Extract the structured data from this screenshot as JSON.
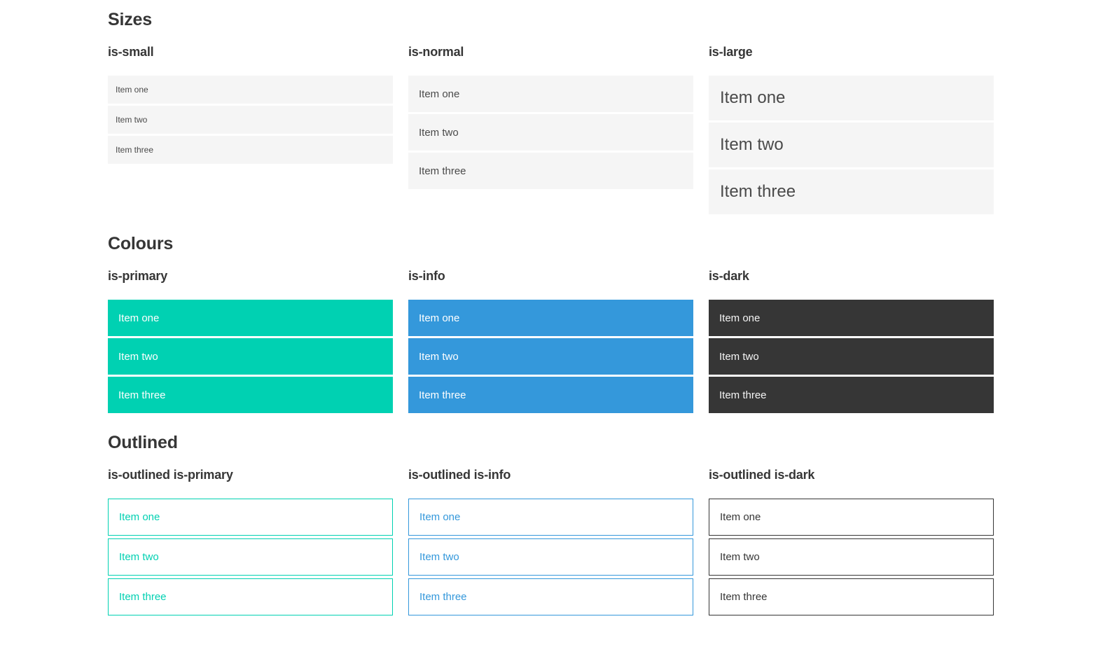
{
  "palette": {
    "primary": "#00d1b2",
    "info": "#3498db",
    "dark": "#363636",
    "light_background": "#f5f5f5",
    "item_text": "#4a4a4a",
    "heading_text": "#363636",
    "light_text": "#f5f5f5"
  },
  "sections": [
    {
      "title": "Sizes",
      "groups": [
        {
          "subtitle": "is-small",
          "items": [
            "Item one",
            "Item two",
            "Item three"
          ]
        },
        {
          "subtitle": "is-normal",
          "items": [
            "Item one",
            "Item two",
            "Item three"
          ]
        },
        {
          "subtitle": "is-large",
          "items": [
            "Item one",
            "Item two",
            "Item three"
          ]
        }
      ]
    },
    {
      "title": "Colours",
      "groups": [
        {
          "subtitle": "is-primary",
          "items": [
            "Item one",
            "Item two",
            "Item three"
          ]
        },
        {
          "subtitle": "is-info",
          "items": [
            "Item one",
            "Item two",
            "Item three"
          ]
        },
        {
          "subtitle": "is-dark",
          "items": [
            "Item one",
            "Item two",
            "Item three"
          ]
        }
      ]
    },
    {
      "title": "Outlined",
      "groups": [
        {
          "subtitle": "is-outlined is-primary",
          "items": [
            "Item one",
            "Item two",
            "Item three"
          ]
        },
        {
          "subtitle": "is-outlined is-info",
          "items": [
            "Item one",
            "Item two",
            "Item three"
          ]
        },
        {
          "subtitle": "is-outlined is-dark",
          "items": [
            "Item one",
            "Item two",
            "Item three"
          ]
        }
      ]
    }
  ]
}
